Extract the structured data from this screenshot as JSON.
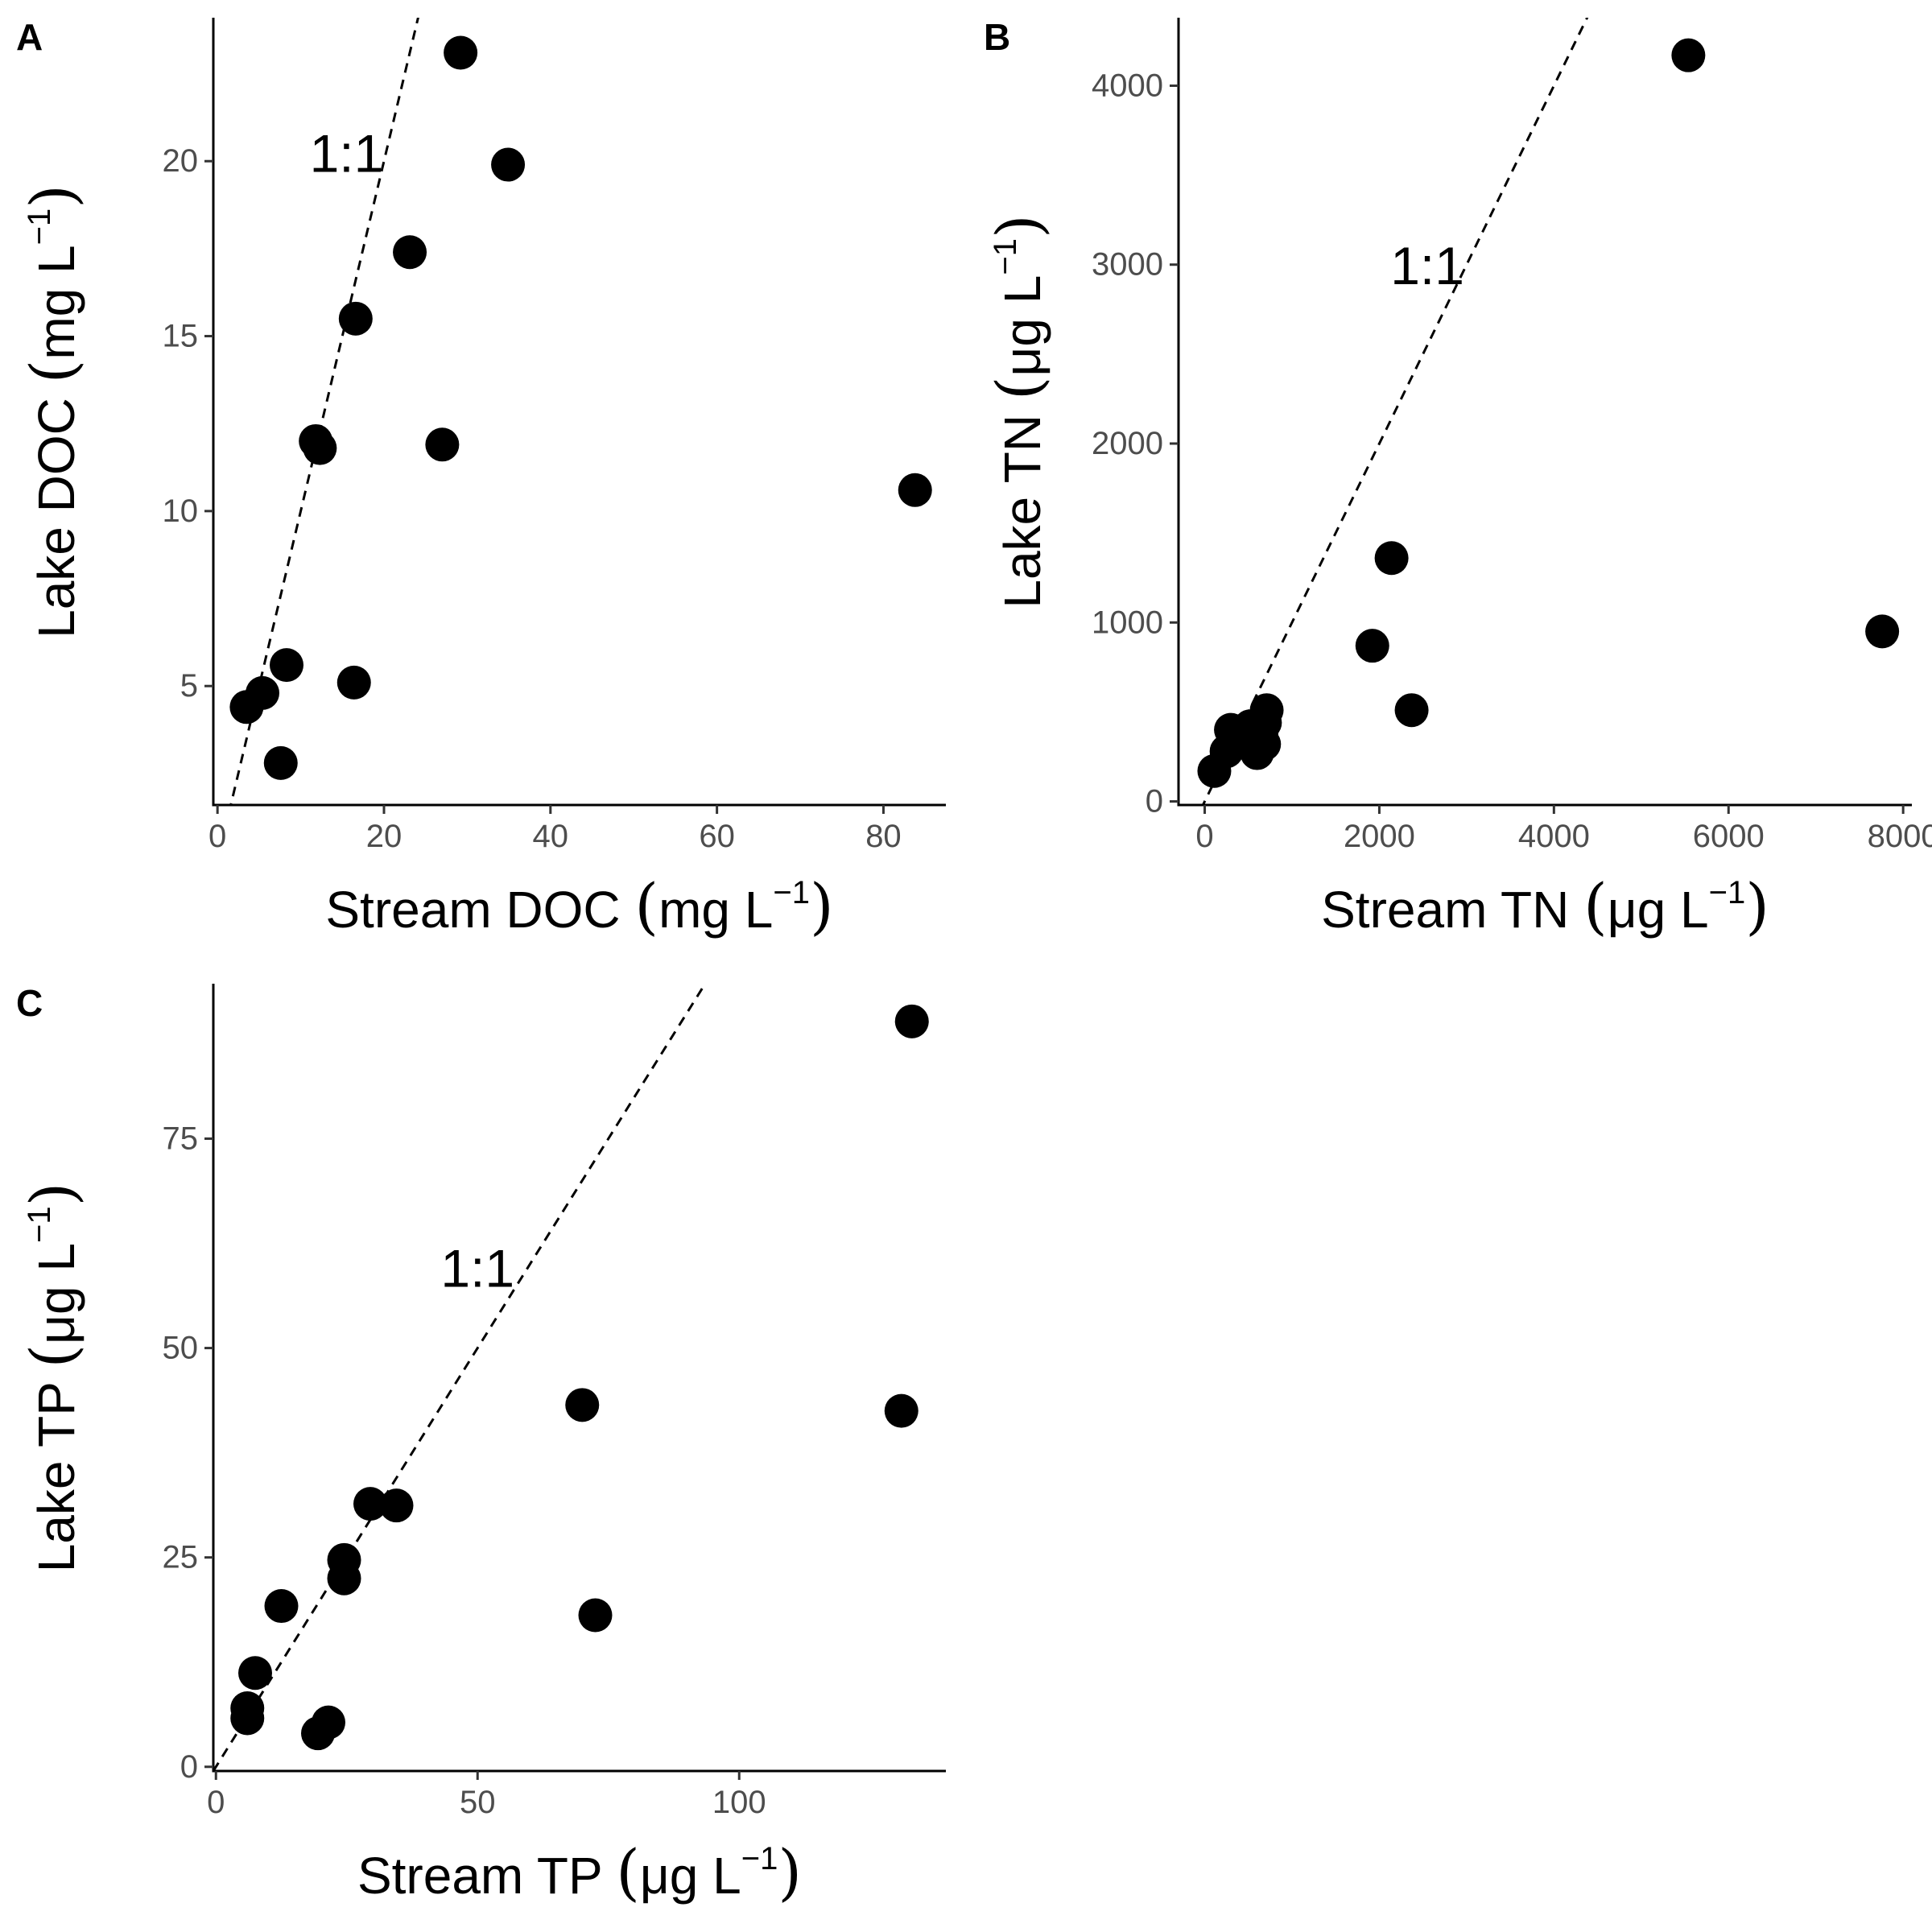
{
  "chart_data": [
    {
      "type": "scatter",
      "panel_label": "A",
      "xlabel": "Stream DOC (mg L−1)",
      "ylabel": "Lake DOC (mg L−1)",
      "x_title": {
        "main": "Stream DOC ",
        "unit": "mg L",
        "sup": "−1"
      },
      "y_title": {
        "main": "Lake DOC ",
        "unit": "mg L",
        "sup": "−1"
      },
      "xlim": [
        -0.5,
        87.5
      ],
      "ylim": [
        1.6,
        24.1
      ],
      "x_ticks": [
        0,
        20,
        40,
        60,
        80
      ],
      "y_ticks": [
        5,
        10,
        15,
        20
      ],
      "x_tick_labels": [
        "0",
        "20",
        "40",
        "60",
        "80"
      ],
      "y_tick_labels": [
        "5",
        "10",
        "15",
        "20"
      ],
      "reference_line": {
        "label": "1:1",
        "slope": 1,
        "intercept": 0
      },
      "ref_label_pos": [
        15.5,
        20.1
      ],
      "points": [
        {
          "x": 3.5,
          "y": 4.4
        },
        {
          "x": 5.4,
          "y": 4.8
        },
        {
          "x": 7.6,
          "y": 2.8
        },
        {
          "x": 8.3,
          "y": 5.6
        },
        {
          "x": 11.8,
          "y": 12.0
        },
        {
          "x": 12.3,
          "y": 11.8
        },
        {
          "x": 16.4,
          "y": 5.1
        },
        {
          "x": 16.6,
          "y": 15.5
        },
        {
          "x": 23.1,
          "y": 17.4
        },
        {
          "x": 27.0,
          "y": 11.9
        },
        {
          "x": 29.2,
          "y": 23.1
        },
        {
          "x": 34.9,
          "y": 19.9
        },
        {
          "x": 83.8,
          "y": 10.6
        }
      ],
      "grid": false,
      "legend": "none"
    },
    {
      "type": "scatter",
      "panel_label": "B",
      "xlabel": "Stream TN (μg L−1)",
      "ylabel": "Lake TN (μg L−1)",
      "x_title": {
        "main": "Stream TN ",
        "unit": "μg L",
        "sup": "−1"
      },
      "y_title": {
        "main": "Lake TN ",
        "unit": "μg L",
        "sup": "−1"
      },
      "xlim": [
        -300,
        8100
      ],
      "ylim": [
        -20,
        4380
      ],
      "x_ticks": [
        0,
        2000,
        4000,
        6000,
        8000
      ],
      "y_ticks": [
        0,
        1000,
        2000,
        3000,
        4000
      ],
      "x_tick_labels": [
        "0",
        "2000",
        "4000",
        "6000",
        "8000"
      ],
      "y_tick_labels": [
        "0",
        "1000",
        "2000",
        "3000",
        "4000"
      ],
      "reference_line": {
        "label": "1:1",
        "slope": 1,
        "intercept": 0
      },
      "ref_label_pos": [
        2550,
        2970
      ],
      "points": [
        {
          "x": 110,
          "y": 170
        },
        {
          "x": 250,
          "y": 280
        },
        {
          "x": 300,
          "y": 400
        },
        {
          "x": 350,
          "y": 340
        },
        {
          "x": 430,
          "y": 330
        },
        {
          "x": 520,
          "y": 420
        },
        {
          "x": 600,
          "y": 270
        },
        {
          "x": 650,
          "y": 380
        },
        {
          "x": 680,
          "y": 320
        },
        {
          "x": 690,
          "y": 440
        },
        {
          "x": 710,
          "y": 510
        },
        {
          "x": 1920,
          "y": 870
        },
        {
          "x": 2140,
          "y": 1360
        },
        {
          "x": 2370,
          "y": 510
        },
        {
          "x": 5540,
          "y": 4170
        },
        {
          "x": 7760,
          "y": 950
        }
      ],
      "grid": false,
      "legend": "none"
    },
    {
      "type": "scatter",
      "panel_label": "C",
      "xlabel": "Stream TP (μg L−1)",
      "ylabel": "Lake TP (μg L−1)",
      "x_title": {
        "main": "Stream TP ",
        "unit": "μg L",
        "sup": "−1"
      },
      "y_title": {
        "main": "Lake TP ",
        "unit": "μg L",
        "sup": "−1"
      },
      "xlim": [
        -0.5,
        139.5
      ],
      "ylim": [
        -0.5,
        93.5
      ],
      "x_ticks": [
        0,
        50,
        100
      ],
      "y_ticks": [
        0,
        25,
        50,
        75
      ],
      "x_tick_labels": [
        "0",
        "50",
        "100"
      ],
      "y_tick_labels": [
        "0",
        "25",
        "50",
        "75"
      ],
      "reference_line": {
        "label": "1:1",
        "slope": 1,
        "intercept": 0
      },
      "ref_label_pos": [
        50,
        59
      ],
      "points": [
        {
          "x": 6,
          "y": 7
        },
        {
          "x": 6,
          "y": 5.8
        },
        {
          "x": 7.5,
          "y": 11.2
        },
        {
          "x": 12.5,
          "y": 19.2
        },
        {
          "x": 19.5,
          "y": 4.0
        },
        {
          "x": 21.5,
          "y": 5.3
        },
        {
          "x": 24.5,
          "y": 24.7
        },
        {
          "x": 24.5,
          "y": 22.5
        },
        {
          "x": 29.5,
          "y": 31.4
        },
        {
          "x": 34.5,
          "y": 31.2
        },
        {
          "x": 70,
          "y": 43.2
        },
        {
          "x": 72.5,
          "y": 18.1
        },
        {
          "x": 131,
          "y": 42.5
        },
        {
          "x": 133,
          "y": 89.0
        }
      ],
      "grid": false,
      "legend": "none"
    }
  ]
}
